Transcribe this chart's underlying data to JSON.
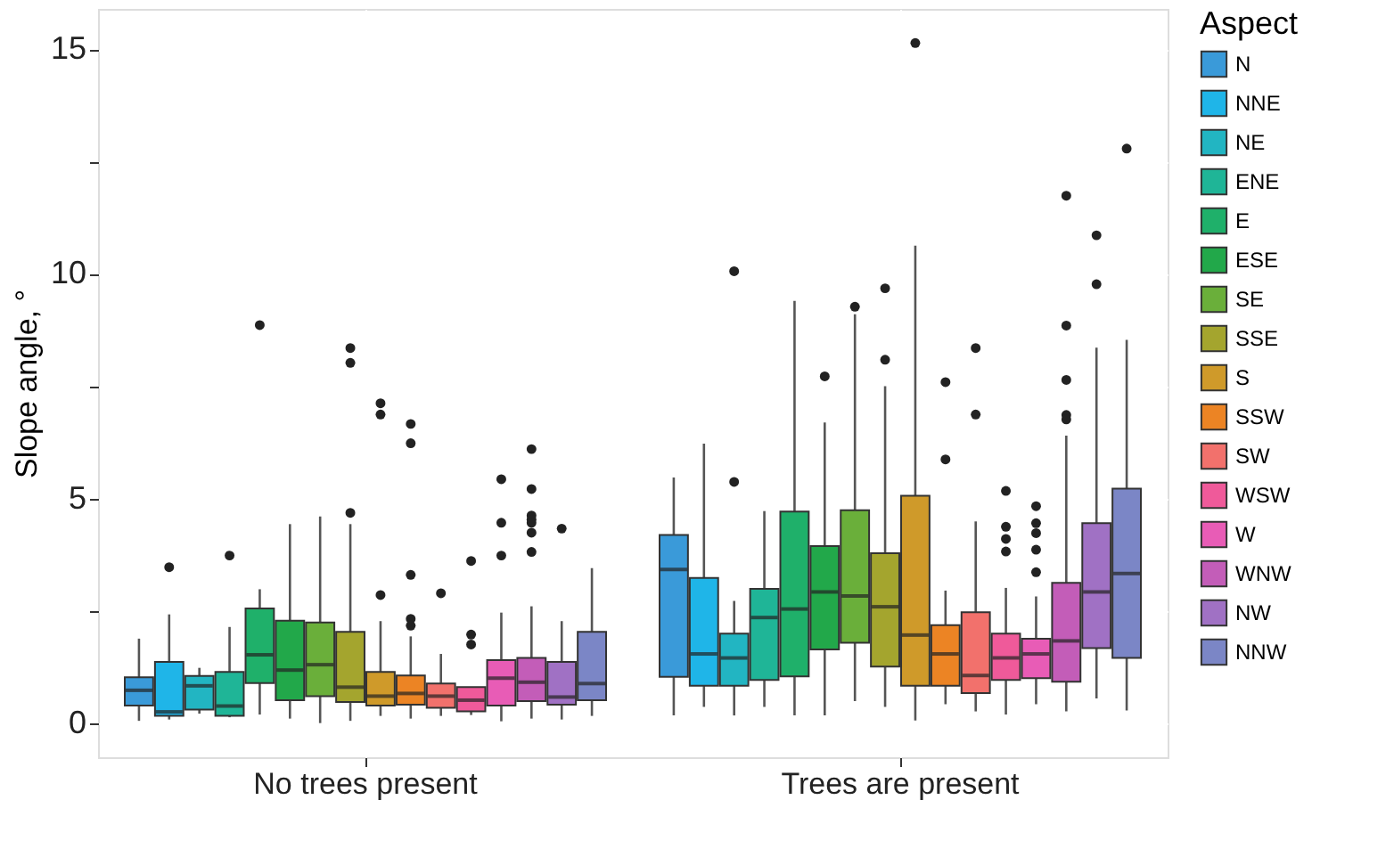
{
  "chart_data": {
    "type": "box",
    "ylabel": "Slope angle, °",
    "legend_title": "Aspect",
    "categories": [
      "No trees present",
      "Trees are present"
    ],
    "ylim": [
      -0.76,
      15.9
    ],
    "yticks": [
      0,
      {
        "value": 2.5,
        "label": null
      },
      5,
      {
        "value": 7.5,
        "label": null
      },
      10,
      {
        "value": 12.5,
        "label": null
      },
      15
    ],
    "grid": true,
    "legend": "right",
    "series": [
      {
        "name": "N",
        "color": "#3a9ad9",
        "boxes": [
          {
            "low": 0.05,
            "q1": 0.39,
            "median": 0.73,
            "q3": 1.02,
            "high": 1.88
          },
          {
            "low": 0.17,
            "q1": 1.03,
            "median": 3.42,
            "q3": 4.19,
            "high": 5.47
          }
        ]
      },
      {
        "name": "NNE",
        "color": "#1fb5e8",
        "boxes": [
          {
            "low": 0.08,
            "q1": 0.16,
            "median": 0.25,
            "q3": 1.36,
            "high": 2.42,
            "outliers": [
              3.47
            ]
          },
          {
            "low": 0.36,
            "q1": 0.83,
            "median": 1.54,
            "q3": 3.23,
            "high": 6.22
          }
        ]
      },
      {
        "name": "NE",
        "color": "#22b5c2",
        "boxes": [
          {
            "low": 0.21,
            "q1": 0.3,
            "median": 0.83,
            "q3": 1.05,
            "high": 1.23
          },
          {
            "low": 0.17,
            "q1": 0.83,
            "median": 1.45,
            "q3": 1.99,
            "high": 2.72,
            "outliers": [
              10.06,
              5.37
            ]
          }
        ]
      },
      {
        "name": "ENE",
        "color": "#1fb597",
        "boxes": [
          {
            "low": 0.13,
            "q1": 0.16,
            "median": 0.38,
            "q3": 1.14,
            "high": 2.14,
            "outliers": [
              3.73
            ]
          },
          {
            "low": 0.36,
            "q1": 0.96,
            "median": 2.35,
            "q3": 2.99,
            "high": 4.72
          }
        ]
      },
      {
        "name": "E",
        "color": "#1fb06a",
        "boxes": [
          {
            "low": 0.19,
            "q1": 0.89,
            "median": 1.52,
            "q3": 2.55,
            "high": 2.98,
            "outliers": [
              8.86
            ]
          },
          {
            "low": 0.17,
            "q1": 1.04,
            "median": 2.54,
            "q3": 4.71,
            "high": 9.4
          }
        ]
      },
      {
        "name": "ESE",
        "color": "#22a84a",
        "boxes": [
          {
            "low": 0.1,
            "q1": 0.51,
            "median": 1.18,
            "q3": 2.28,
            "high": 4.43
          },
          {
            "low": 0.17,
            "q1": 1.64,
            "median": 2.92,
            "q3": 3.94,
            "high": 6.69,
            "outliers": [
              7.72
            ]
          }
        ]
      },
      {
        "name": "SE",
        "color": "#6aaf3a",
        "boxes": [
          {
            "low": 0.0,
            "q1": 0.6,
            "median": 1.3,
            "q3": 2.24,
            "high": 4.6
          },
          {
            "low": 0.49,
            "q1": 1.79,
            "median": 2.83,
            "q3": 4.74,
            "high": 9.1,
            "outliers": [
              9.27
            ]
          }
        ]
      },
      {
        "name": "SSE",
        "color": "#a4a52e",
        "boxes": [
          {
            "low": 0.05,
            "q1": 0.47,
            "median": 0.8,
            "q3": 2.03,
            "high": 4.43,
            "outliers": [
              8.35,
              8.02,
              4.68
            ]
          },
          {
            "low": 0.36,
            "q1": 1.26,
            "median": 2.59,
            "q3": 3.78,
            "high": 7.5,
            "outliers": [
              9.68,
              8.09
            ]
          }
        ]
      },
      {
        "name": "S",
        "color": "#cf9a2a",
        "boxes": [
          {
            "low": 0.16,
            "q1": 0.39,
            "median": 0.6,
            "q3": 1.14,
            "high": 2.27,
            "outliers": [
              7.12,
              6.87,
              2.85
            ]
          },
          {
            "low": 0.06,
            "q1": 0.83,
            "median": 1.96,
            "q3": 5.06,
            "high": 10.63,
            "outliers": [
              15.14
            ]
          }
        ]
      },
      {
        "name": "SSW",
        "color": "#ec8424",
        "boxes": [
          {
            "low": 0.1,
            "q1": 0.41,
            "median": 0.66,
            "q3": 1.06,
            "high": 1.93,
            "outliers": [
              6.66,
              6.23,
              3.3,
              2.32,
              2.17
            ]
          },
          {
            "low": 0.42,
            "q1": 0.83,
            "median": 1.54,
            "q3": 2.18,
            "high": 2.95,
            "outliers": [
              7.59,
              5.87
            ]
          }
        ]
      },
      {
        "name": "SW",
        "color": "#f2716c",
        "boxes": [
          {
            "low": 0.16,
            "q1": 0.34,
            "median": 0.6,
            "q3": 0.88,
            "high": 1.54,
            "outliers": [
              2.89
            ]
          },
          {
            "low": 0.26,
            "q1": 0.67,
            "median": 1.06,
            "q3": 2.47,
            "high": 4.49,
            "outliers": [
              8.35,
              6.87
            ]
          }
        ]
      },
      {
        "name": "WSW",
        "color": "#ef5a9a",
        "boxes": [
          {
            "low": 0.18,
            "q1": 0.26,
            "median": 0.51,
            "q3": 0.8,
            "high": 0.8,
            "outliers": [
              3.61,
              1.97,
              1.75
            ]
          },
          {
            "low": 0.19,
            "q1": 0.96,
            "median": 1.45,
            "q3": 1.99,
            "high": 3.01,
            "outliers": [
              5.17,
              4.37,
              4.1,
              3.82
            ]
          }
        ]
      },
      {
        "name": "W",
        "color": "#e85cb6",
        "boxes": [
          {
            "low": 0.04,
            "q1": 0.39,
            "median": 1.0,
            "q3": 1.4,
            "high": 2.46,
            "outliers": [
              5.43,
              4.46,
              3.73
            ]
          },
          {
            "low": 0.42,
            "q1": 1.0,
            "median": 1.54,
            "q3": 1.88,
            "high": 2.82,
            "outliers": [
              4.83,
              4.45,
              4.23,
              3.86,
              3.36
            ]
          }
        ]
      },
      {
        "name": "WNW",
        "color": "#c35db8",
        "boxes": [
          {
            "low": 0.1,
            "q1": 0.49,
            "median": 0.91,
            "q3": 1.45,
            "high": 2.6,
            "outliers": [
              6.1,
              5.21,
              4.62,
              4.53,
              4.46,
              4.24,
              3.81
            ]
          },
          {
            "low": 0.26,
            "q1": 0.92,
            "median": 1.83,
            "q3": 3.12,
            "high": 6.4,
            "outliers": [
              11.74,
              8.85,
              7.64,
              6.86,
              6.76
            ]
          }
        ]
      },
      {
        "name": "NW",
        "color": "#a071c4",
        "boxes": [
          {
            "low": 0.08,
            "q1": 0.41,
            "median": 0.58,
            "q3": 1.36,
            "high": 2.27,
            "outliers": [
              4.33
            ]
          },
          {
            "low": 0.55,
            "q1": 1.67,
            "median": 2.92,
            "q3": 4.45,
            "high": 8.36,
            "outliers": [
              10.86,
              9.77
            ]
          }
        ]
      },
      {
        "name": "NNW",
        "color": "#7b86c6",
        "boxes": [
          {
            "low": 0.16,
            "q1": 0.51,
            "median": 0.88,
            "q3": 2.03,
            "high": 3.45
          },
          {
            "low": 0.28,
            "q1": 1.45,
            "median": 3.33,
            "q3": 5.22,
            "high": 8.53,
            "outliers": [
              12.79
            ]
          }
        ]
      }
    ]
  }
}
